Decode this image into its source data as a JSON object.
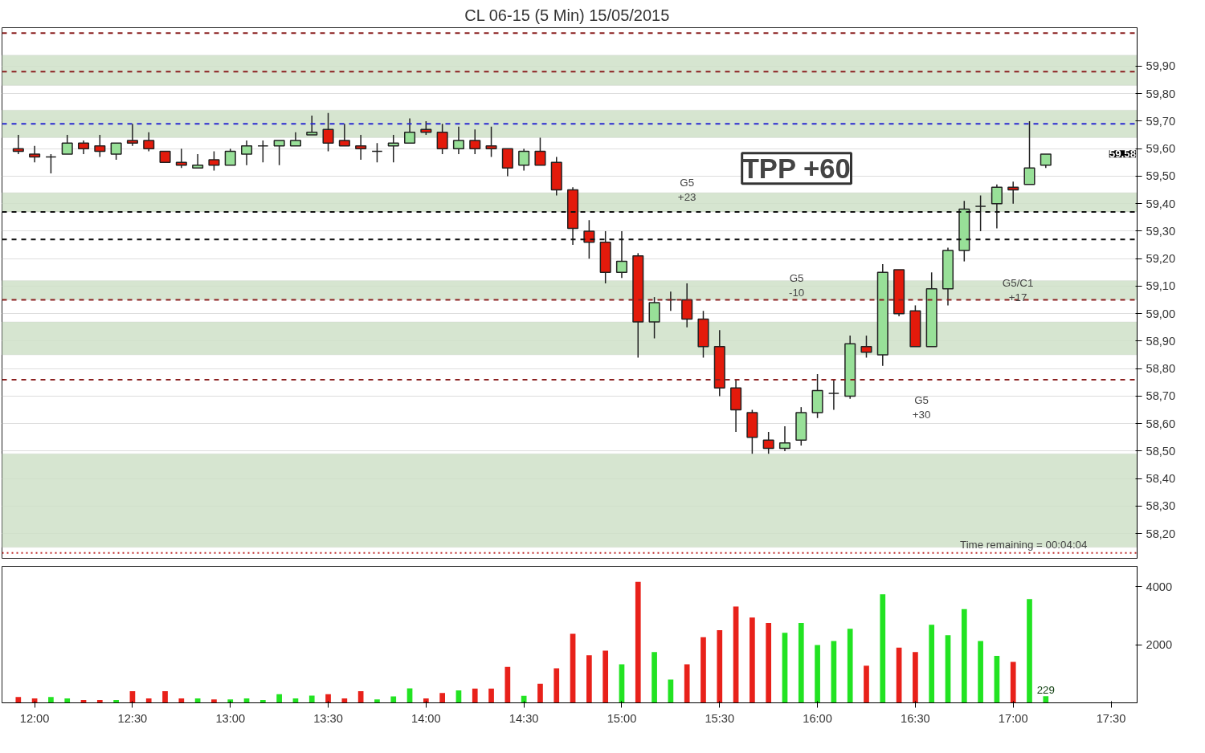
{
  "chart_data": [
    {
      "type": "candlestick",
      "title": "CL 06-15 (5 Min)  15/05/2015",
      "x": [
        "2015-05-15T11:55",
        "2015-05-15T12:00",
        "2015-05-15T12:05",
        "2015-05-15T12:10",
        "2015-05-15T12:15",
        "2015-05-15T12:20",
        "2015-05-15T12:25",
        "2015-05-15T12:30",
        "2015-05-15T12:35",
        "2015-05-15T12:40",
        "2015-05-15T12:45",
        "2015-05-15T12:50",
        "2015-05-15T12:55",
        "2015-05-15T13:00",
        "2015-05-15T13:05",
        "2015-05-15T13:10",
        "2015-05-15T13:15",
        "2015-05-15T13:20",
        "2015-05-15T13:25",
        "2015-05-15T13:30",
        "2015-05-15T13:35",
        "2015-05-15T13:40",
        "2015-05-15T13:45",
        "2015-05-15T13:50",
        "2015-05-15T13:55",
        "2015-05-15T14:00",
        "2015-05-15T14:05",
        "2015-05-15T14:10",
        "2015-05-15T14:15",
        "2015-05-15T14:20",
        "2015-05-15T14:25",
        "2015-05-15T14:30",
        "2015-05-15T14:35",
        "2015-05-15T14:40",
        "2015-05-15T14:45",
        "2015-05-15T14:50",
        "2015-05-15T14:55",
        "2015-05-15T15:00",
        "2015-05-15T15:05",
        "2015-05-15T15:10",
        "2015-05-15T15:15",
        "2015-05-15T15:20",
        "2015-05-15T15:25",
        "2015-05-15T15:30",
        "2015-05-15T15:35",
        "2015-05-15T15:40",
        "2015-05-15T15:45",
        "2015-05-15T15:50",
        "2015-05-15T15:55",
        "2015-05-15T16:00",
        "2015-05-15T16:05",
        "2015-05-15T16:10",
        "2015-05-15T16:15",
        "2015-05-15T16:20",
        "2015-05-15T16:25",
        "2015-05-15T16:30",
        "2015-05-15T16:35",
        "2015-05-15T16:40",
        "2015-05-15T16:45",
        "2015-05-15T16:50",
        "2015-05-15T16:55",
        "2015-05-15T17:00",
        "2015-05-15T17:05",
        "2015-05-15T17:10"
      ],
      "ohlc": [
        [
          59.6,
          59.65,
          59.58,
          59.59
        ],
        [
          59.58,
          59.61,
          59.55,
          59.57
        ],
        [
          59.57,
          59.58,
          59.51,
          59.57
        ],
        [
          59.58,
          59.65,
          59.58,
          59.62
        ],
        [
          59.62,
          59.63,
          59.58,
          59.6
        ],
        [
          59.61,
          59.65,
          59.57,
          59.59
        ],
        [
          59.58,
          59.62,
          59.56,
          59.62
        ],
        [
          59.63,
          59.69,
          59.61,
          59.62
        ],
        [
          59.63,
          59.66,
          59.59,
          59.6
        ],
        [
          59.59,
          59.59,
          59.55,
          59.55
        ],
        [
          59.55,
          59.6,
          59.53,
          59.54
        ],
        [
          59.53,
          59.58,
          59.53,
          59.54
        ],
        [
          59.56,
          59.59,
          59.52,
          59.54
        ],
        [
          59.54,
          59.6,
          59.54,
          59.59
        ],
        [
          59.58,
          59.63,
          59.54,
          59.61
        ],
        [
          59.61,
          59.63,
          59.55,
          59.61
        ],
        [
          59.61,
          59.63,
          59.54,
          59.63
        ],
        [
          59.61,
          59.66,
          59.61,
          59.63
        ],
        [
          59.65,
          59.72,
          59.65,
          59.66
        ],
        [
          59.67,
          59.73,
          59.59,
          59.62
        ],
        [
          59.63,
          59.69,
          59.61,
          59.61
        ],
        [
          59.61,
          59.65,
          59.56,
          59.6
        ],
        [
          59.59,
          59.62,
          59.55,
          59.59
        ],
        [
          59.61,
          59.65,
          59.55,
          59.62
        ],
        [
          59.62,
          59.71,
          59.62,
          59.66
        ],
        [
          59.67,
          59.7,
          59.65,
          59.66
        ],
        [
          59.66,
          59.69,
          59.58,
          59.6
        ],
        [
          59.6,
          59.68,
          59.58,
          59.63
        ],
        [
          59.63,
          59.67,
          59.58,
          59.6
        ],
        [
          59.61,
          59.68,
          59.57,
          59.6
        ],
        [
          59.6,
          59.6,
          59.5,
          59.53
        ],
        [
          59.54,
          59.6,
          59.52,
          59.59
        ],
        [
          59.59,
          59.64,
          59.54,
          59.54
        ],
        [
          59.55,
          59.57,
          59.43,
          59.45
        ],
        [
          59.45,
          59.46,
          59.25,
          59.31
        ],
        [
          59.3,
          59.34,
          59.2,
          59.26
        ],
        [
          59.26,
          59.3,
          59.11,
          59.15
        ],
        [
          59.15,
          59.3,
          59.13,
          59.19
        ],
        [
          59.21,
          59.22,
          58.84,
          58.97
        ],
        [
          58.97,
          59.06,
          58.91,
          59.04
        ],
        [
          59.05,
          59.08,
          59.01,
          59.05
        ],
        [
          59.05,
          59.11,
          58.95,
          58.98
        ],
        [
          58.98,
          59.01,
          58.84,
          58.88
        ],
        [
          58.88,
          58.94,
          58.7,
          58.73
        ],
        [
          58.73,
          58.76,
          58.57,
          58.65
        ],
        [
          58.64,
          58.65,
          58.49,
          58.55
        ],
        [
          58.54,
          58.57,
          58.49,
          58.51
        ],
        [
          58.51,
          58.59,
          58.5,
          58.53
        ],
        [
          58.54,
          58.66,
          58.52,
          58.64
        ],
        [
          58.64,
          58.78,
          58.62,
          58.72
        ],
        [
          58.71,
          58.76,
          58.65,
          58.71
        ],
        [
          58.7,
          58.92,
          58.69,
          58.89
        ],
        [
          58.88,
          58.92,
          58.84,
          58.86
        ],
        [
          58.85,
          59.18,
          58.81,
          59.15
        ],
        [
          59.16,
          59.16,
          58.99,
          59.0
        ],
        [
          59.01,
          59.03,
          58.88,
          58.88
        ],
        [
          58.88,
          59.15,
          58.88,
          59.09
        ],
        [
          59.09,
          59.24,
          59.03,
          59.23
        ],
        [
          59.23,
          59.41,
          59.19,
          59.38
        ],
        [
          59.39,
          59.43,
          59.3,
          59.39
        ],
        [
          59.4,
          59.47,
          59.31,
          59.46
        ],
        [
          59.46,
          59.48,
          59.4,
          59.45
        ],
        [
          59.47,
          59.7,
          59.47,
          59.53
        ],
        [
          59.54,
          59.58,
          59.53,
          59.58
        ]
      ],
      "colors": [
        "#e31a0b",
        "#e31a0b",
        "#222222",
        "#98e098",
        "#e31a0b",
        "#e31a0b",
        "#98e098",
        "#e31a0b",
        "#e31a0b",
        "#e31a0b",
        "#e31a0b",
        "#98e098",
        "#e31a0b",
        "#98e098",
        "#98e098",
        "#222222",
        "#98e098",
        "#98e098",
        "#98e098",
        "#e31a0b",
        "#e31a0b",
        "#e31a0b",
        "#222222",
        "#98e098",
        "#98e098",
        "#e31a0b",
        "#e31a0b",
        "#98e098",
        "#e31a0b",
        "#e31a0b",
        "#e31a0b",
        "#98e098",
        "#e31a0b",
        "#e31a0b",
        "#e31a0b",
        "#e31a0b",
        "#e31a0b",
        "#98e098",
        "#e31a0b",
        "#98e098",
        "#222222",
        "#e31a0b",
        "#e31a0b",
        "#e31a0b",
        "#e31a0b",
        "#e31a0b",
        "#e31a0b",
        "#98e098",
        "#98e098",
        "#98e098",
        "#222222",
        "#98e098",
        "#e31a0b",
        "#98e098",
        "#e31a0b",
        "#e31a0b",
        "#98e098",
        "#98e098",
        "#98e098",
        "#222222",
        "#98e098",
        "#e31a0b",
        "#98e098",
        "#98e098"
      ],
      "xlim": [
        "2015-05-15T11:50",
        "2015-05-15T17:38"
      ],
      "ylim": [
        58.11,
        60.04
      ],
      "yticks": [
        {
          "value": 58.2,
          "label": "58,20"
        },
        {
          "value": 58.3,
          "label": "58,30"
        },
        {
          "value": 58.4,
          "label": "58,40"
        },
        {
          "value": 58.5,
          "label": "58,50"
        },
        {
          "value": 58.6,
          "label": "58,60"
        },
        {
          "value": 58.7,
          "label": "58,70"
        },
        {
          "value": 58.8,
          "label": "58,80"
        },
        {
          "value": 58.9,
          "label": "58,90"
        },
        {
          "value": 59.0,
          "label": "59,00"
        },
        {
          "value": 59.1,
          "label": "59,10"
        },
        {
          "value": 59.2,
          "label": "59,20"
        },
        {
          "value": 59.3,
          "label": "59,30"
        },
        {
          "value": 59.4,
          "label": "59,40"
        },
        {
          "value": 59.5,
          "label": "59,50"
        },
        {
          "value": 59.6,
          "label": "59,60"
        },
        {
          "value": 59.7,
          "label": "59,70"
        },
        {
          "value": 59.8,
          "label": "59,80"
        },
        {
          "value": 59.9,
          "label": "59,90"
        }
      ],
      "tick_labels": "y",
      "grid": "y",
      "bands": [
        {
          "axis": "y",
          "from": 59.83,
          "to": 59.94,
          "color": "#cfe0c8"
        },
        {
          "axis": "y",
          "from": 59.64,
          "to": 59.74,
          "color": "#cfe0c8"
        },
        {
          "axis": "y",
          "from": 59.37,
          "to": 59.44,
          "color": "#cfe0c8"
        },
        {
          "axis": "y",
          "from": 59.05,
          "to": 59.12,
          "color": "#cfe0c8"
        },
        {
          "axis": "y",
          "from": 58.85,
          "to": 58.97,
          "color": "#cfe0c8"
        },
        {
          "axis": "y",
          "from": 58.15,
          "to": 58.49,
          "color": "#cfe0c8"
        }
      ],
      "ref_lines": [
        {
          "axis": "y",
          "value": 60.02,
          "color": "#8b2020",
          "line_style": "dashed"
        },
        {
          "axis": "y",
          "value": 59.88,
          "color": "#8b2020",
          "line_style": "dashed"
        },
        {
          "axis": "y",
          "value": 59.69,
          "color": "#2a2ad0",
          "line_style": "dashed"
        },
        {
          "axis": "y",
          "value": 59.37,
          "color": "#111111",
          "line_style": "dashed"
        },
        {
          "axis": "y",
          "value": 59.27,
          "color": "#111111",
          "line_style": "dashed"
        },
        {
          "axis": "y",
          "value": 59.05,
          "color": "#8b2020",
          "line_style": "dashed"
        },
        {
          "axis": "y",
          "value": 58.76,
          "color": "#8b2020",
          "line_style": "dashed"
        },
        {
          "axis": "y",
          "value": 58.13,
          "color": "#c03030",
          "line_style": "dotted"
        }
      ],
      "annotations": [
        {
          "text": "G5\n+23",
          "x": "2015-05-15T15:20",
          "y": 59.45
        },
        "G5\n-10",
        "G5\n+30",
        "G5/C1\n+17",
        "TPP +60",
        "Time remaining = 00:04:04",
        "59,58"
      ]
    },
    {
      "type": "bar",
      "x": [
        "2015-05-15T11:55",
        "2015-05-15T12:00",
        "2015-05-15T12:05",
        "2015-05-15T12:10",
        "2015-05-15T12:15",
        "2015-05-15T12:20",
        "2015-05-15T12:25",
        "2015-05-15T12:30",
        "2015-05-15T12:35",
        "2015-05-15T12:40",
        "2015-05-15T12:45",
        "2015-05-15T12:50",
        "2015-05-15T12:55",
        "2015-05-15T13:00",
        "2015-05-15T13:05",
        "2015-05-15T13:10",
        "2015-05-15T13:15",
        "2015-05-15T13:20",
        "2015-05-15T13:25",
        "2015-05-15T13:30",
        "2015-05-15T13:35",
        "2015-05-15T13:40",
        "2015-05-15T13:45",
        "2015-05-15T13:50",
        "2015-05-15T13:55",
        "2015-05-15T14:00",
        "2015-05-15T14:05",
        "2015-05-15T14:10",
        "2015-05-15T14:15",
        "2015-05-15T14:20",
        "2015-05-15T14:25",
        "2015-05-15T14:30",
        "2015-05-15T14:35",
        "2015-05-15T14:40",
        "2015-05-15T14:45",
        "2015-05-15T14:50",
        "2015-05-15T14:55",
        "2015-05-15T15:00",
        "2015-05-15T15:05",
        "2015-05-15T15:10",
        "2015-05-15T15:15",
        "2015-05-15T15:20",
        "2015-05-15T15:25",
        "2015-05-15T15:30",
        "2015-05-15T15:35",
        "2015-05-15T15:40",
        "2015-05-15T15:45",
        "2015-05-15T15:50",
        "2015-05-15T15:55",
        "2015-05-15T16:00",
        "2015-05-15T16:05",
        "2015-05-15T16:10",
        "2015-05-15T16:15",
        "2015-05-15T16:20",
        "2015-05-15T16:25",
        "2015-05-15T16:30",
        "2015-05-15T16:35",
        "2015-05-15T16:40",
        "2015-05-15T16:45",
        "2015-05-15T16:50",
        "2015-05-15T16:55",
        "2015-05-15T17:00",
        "2015-05-15T17:05",
        "2015-05-15T17:10"
      ],
      "values": [
        200,
        150,
        200,
        150,
        100,
        100,
        100,
        400,
        150,
        400,
        150,
        150,
        120,
        120,
        150,
        100,
        300,
        150,
        250,
        300,
        150,
        400,
        120,
        220,
        500,
        150,
        340,
        430,
        490,
        490,
        1240,
        240,
        660,
        1190,
        2380,
        1640,
        1800,
        1330,
        4170,
        1750,
        800,
        1330,
        2260,
        2500,
        3320,
        2940,
        2750,
        2410,
        2750,
        1990,
        2130,
        2550,
        1280,
        3740,
        1900,
        1750,
        2690,
        2330,
        3230,
        2130,
        1620,
        1410,
        3570,
        229
      ],
      "colors": [
        "#e8211a",
        "#e8211a",
        "#22e322",
        "#22e322",
        "#e8211a",
        "#e8211a",
        "#22e322",
        "#e8211a",
        "#e8211a",
        "#e8211a",
        "#e8211a",
        "#22e322",
        "#e8211a",
        "#22e322",
        "#22e322",
        "#22e322",
        "#22e322",
        "#22e322",
        "#22e322",
        "#e8211a",
        "#e8211a",
        "#e8211a",
        "#22e322",
        "#22e322",
        "#22e322",
        "#e8211a",
        "#e8211a",
        "#22e322",
        "#e8211a",
        "#e8211a",
        "#e8211a",
        "#22e322",
        "#e8211a",
        "#e8211a",
        "#e8211a",
        "#e8211a",
        "#e8211a",
        "#22e322",
        "#e8211a",
        "#22e322",
        "#22e322",
        "#e8211a",
        "#e8211a",
        "#e8211a",
        "#e8211a",
        "#e8211a",
        "#e8211a",
        "#22e322",
        "#22e322",
        "#22e322",
        "#22e322",
        "#22e322",
        "#e8211a",
        "#22e322",
        "#e8211a",
        "#e8211a",
        "#22e322",
        "#22e322",
        "#22e322",
        "#22e322",
        "#22e322",
        "#e8211a",
        "#22e322",
        "#22e322"
      ],
      "value_labels": [
        null,
        null,
        null,
        null,
        null,
        null,
        null,
        null,
        null,
        null,
        null,
        null,
        null,
        null,
        null,
        null,
        null,
        null,
        null,
        null,
        null,
        null,
        null,
        null,
        null,
        null,
        null,
        null,
        null,
        null,
        null,
        null,
        null,
        null,
        null,
        null,
        null,
        null,
        null,
        null,
        null,
        null,
        null,
        null,
        null,
        null,
        null,
        null,
        null,
        null,
        null,
        null,
        null,
        null,
        null,
        null,
        null,
        null,
        null,
        null,
        null,
        null,
        null,
        "229"
      ],
      "xlim": [
        "2015-05-15T11:50",
        "2015-05-15T17:38"
      ],
      "xticks": [
        {
          "value": "2015-05-15T12:00",
          "label": "12:00"
        },
        {
          "value": "2015-05-15T12:30",
          "label": "12:30"
        },
        {
          "value": "2015-05-15T13:00",
          "label": "13:00"
        },
        {
          "value": "2015-05-15T13:30",
          "label": "13:30"
        },
        {
          "value": "2015-05-15T14:00",
          "label": "14:00"
        },
        {
          "value": "2015-05-15T14:30",
          "label": "14:30"
        },
        {
          "value": "2015-05-15T15:00",
          "label": "15:00"
        },
        {
          "value": "2015-05-15T15:30",
          "label": "15:30"
        },
        {
          "value": "2015-05-15T16:00",
          "label": "16:00"
        },
        {
          "value": "2015-05-15T16:30",
          "label": "16:30"
        },
        {
          "value": "2015-05-15T17:00",
          "label": "17:00"
        },
        {
          "value": "2015-05-15T17:30",
          "label": "17:30"
        }
      ],
      "ylim": [
        0,
        4700
      ],
      "yticks": [
        2000,
        4000
      ]
    }
  ]
}
